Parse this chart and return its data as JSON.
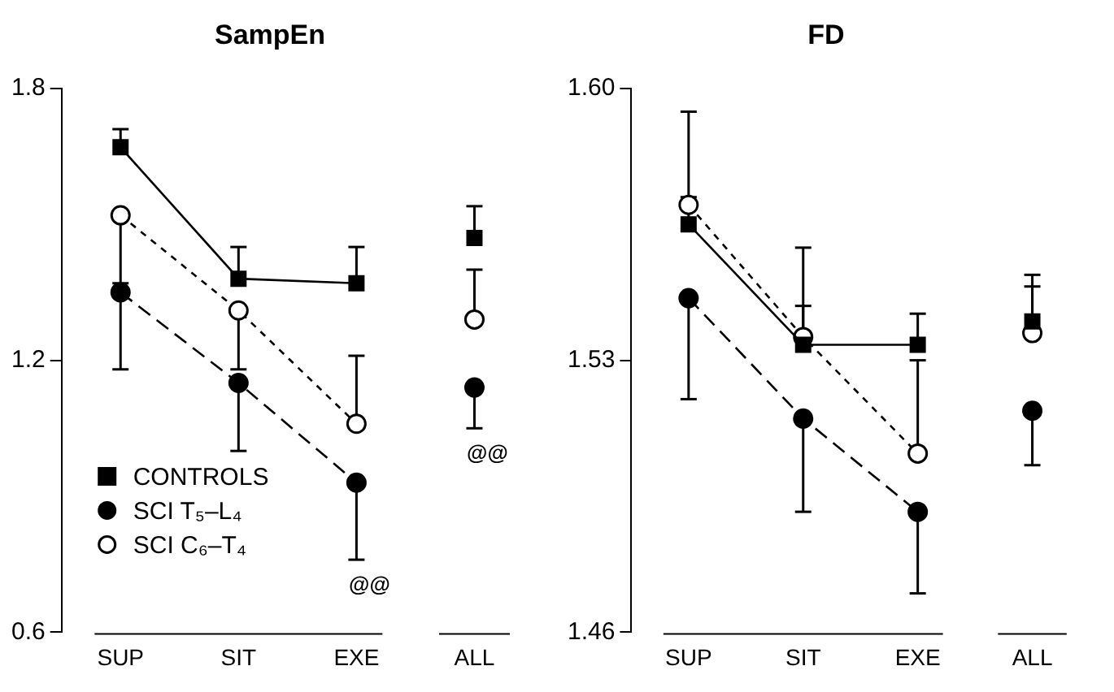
{
  "chart_data": [
    {
      "type": "line",
      "title": "SampEn",
      "categories": [
        "SUP",
        "SIT",
        "EXE",
        "ALL"
      ],
      "ylim": [
        0.6,
        1.8
      ],
      "yticks": [
        0.6,
        1.2,
        1.8
      ],
      "grid": false,
      "legend": "bottom left",
      "series": [
        {
          "name": "CONTROLS",
          "color": "#000000",
          "marker": "square",
          "line_style": "solid",
          "values": [
            1.67,
            1.38,
            1.37,
            null
          ],
          "errors": [
            [
              1.67,
              1.71
            ],
            [
              1.38,
              1.45
            ],
            [
              1.37,
              1.45
            ],
            null
          ]
        },
        {
          "name": "SCI T₅–L₄",
          "color": "#000000",
          "marker": "circle",
          "line_style": "dashed",
          "values": [
            1.35,
            1.15,
            0.93,
            null
          ],
          "errors": [
            [
              1.18,
              1.35
            ],
            [
              1.0,
              1.15
            ],
            [
              0.76,
              0.93
            ],
            null
          ]
        },
        {
          "name": "SCI C₆–T₄",
          "color": "#000000",
          "marker": "circle-open",
          "line_style": "dotted",
          "values": [
            1.52,
            1.31,
            1.06,
            null
          ],
          "errors": [
            [
              1.37,
              1.52
            ],
            [
              1.18,
              1.31
            ],
            [
              1.06,
              1.21
            ],
            null
          ]
        },
        {
          "type": "scatter",
          "color": "#000000",
          "marker": "square",
          "x": [
            "ALL"
          ],
          "values": [
            1.47
          ],
          "errors": [
            [
              1.47,
              1.54
            ]
          ]
        },
        {
          "type": "scatter",
          "color": "#000000",
          "marker": "circle",
          "x": [
            "ALL"
          ],
          "values": [
            1.14
          ],
          "errors": [
            [
              1.05,
              1.14
            ]
          ]
        },
        {
          "type": "scatter",
          "color": "#000000",
          "marker": "circle-open",
          "x": [
            "ALL"
          ],
          "values": [
            1.29
          ],
          "errors": [
            [
              1.29,
              1.4
            ]
          ]
        }
      ],
      "annotations": [
        "@@",
        "@@"
      ]
    },
    {
      "type": "line",
      "title": "FD",
      "categories": [
        "SUP",
        "SIT",
        "EXE",
        "ALL"
      ],
      "ylim": [
        1.46,
        1.6
      ],
      "yticks": [
        {
          "value": 1.46,
          "label": "1.46"
        },
        {
          "value": 1.53,
          "label": "1.53"
        },
        {
          "value": 1.6,
          "label": "1.60"
        }
      ],
      "grid": false,
      "legend": false,
      "series": [
        {
          "color": "#000000",
          "marker": "square",
          "line_style": "solid",
          "values": [
            1.565,
            1.534,
            1.534,
            null
          ],
          "errors": [
            [
              1.565,
              1.572
            ],
            [
              1.534,
              1.544
            ],
            [
              1.534,
              1.542
            ],
            null
          ]
        },
        {
          "color": "#000000",
          "marker": "circle",
          "line_style": "dashed",
          "values": [
            1.546,
            1.515,
            1.491,
            null
          ],
          "errors": [
            [
              1.52,
              1.546
            ],
            [
              1.491,
              1.515
            ],
            [
              1.47,
              1.491
            ],
            null
          ]
        },
        {
          "color": "#000000",
          "marker": "circle-open",
          "line_style": "dotted",
          "values": [
            1.57,
            1.536,
            1.506,
            null
          ],
          "errors": [
            [
              1.57,
              1.594
            ],
            [
              1.536,
              1.559
            ],
            [
              1.506,
              1.53
            ],
            null
          ]
        },
        {
          "type": "scatter",
          "color": "#000000",
          "marker": "square",
          "x": [
            "ALL"
          ],
          "values": [
            1.54
          ],
          "errors": [
            [
              1.54,
              1.549
            ]
          ]
        },
        {
          "type": "scatter",
          "color": "#000000",
          "marker": "circle",
          "x": [
            "ALL"
          ],
          "values": [
            1.517
          ],
          "errors": [
            [
              1.503,
              1.517
            ]
          ]
        },
        {
          "type": "scatter",
          "color": "#000000",
          "marker": "circle-open",
          "x": [
            "ALL"
          ],
          "values": [
            1.537
          ],
          "errors": [
            [
              1.537,
              1.552
            ]
          ]
        }
      ]
    }
  ]
}
